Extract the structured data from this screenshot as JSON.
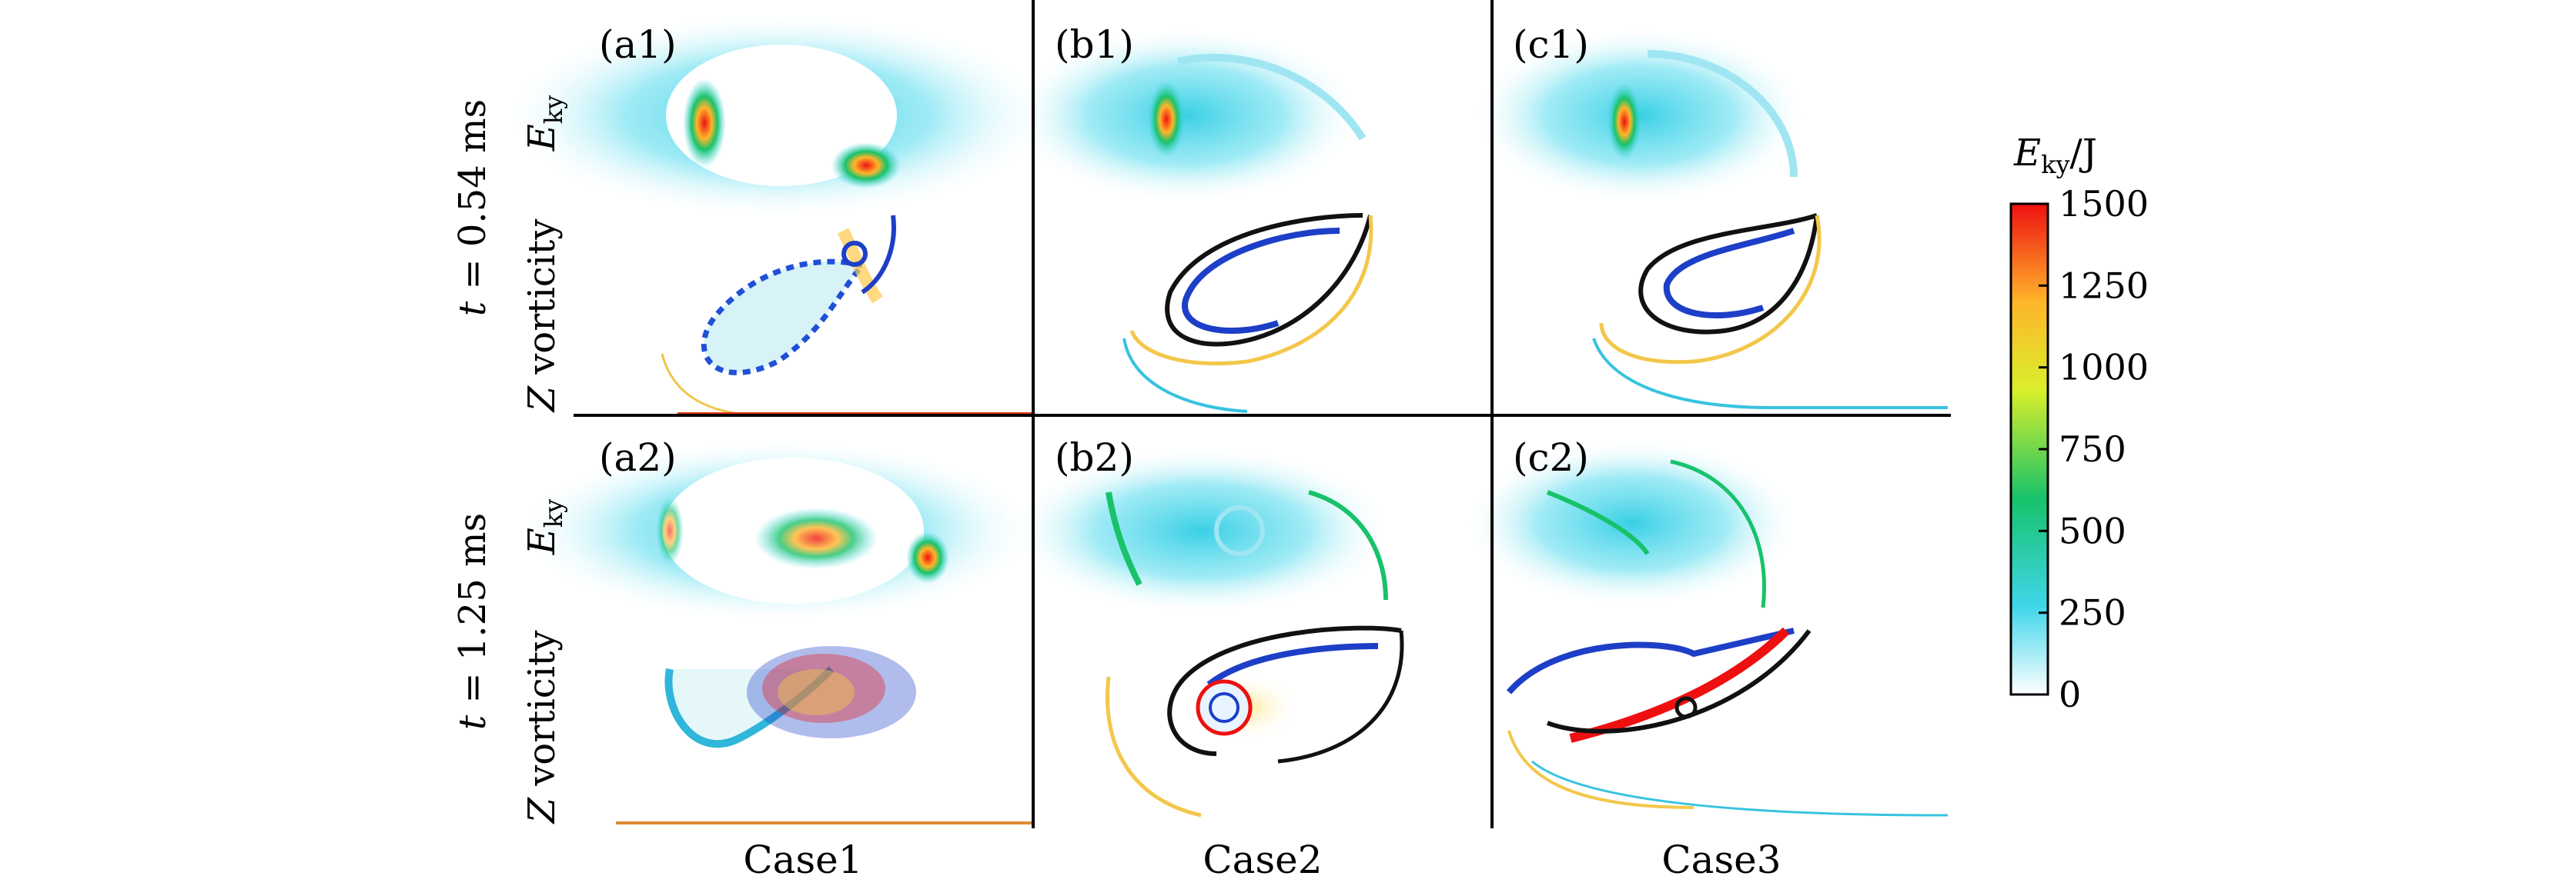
{
  "row_labels": [
    {
      "prefix": "t",
      "suffix": " = 0.54 ms"
    },
    {
      "prefix": "t",
      "suffix": " = 1.25 ms"
    }
  ],
  "subrow_labels": {
    "energy_main": "E",
    "energy_sub": "ky",
    "vorticity_main": "Z",
    "vorticity_rest": " vorticity"
  },
  "column_labels": [
    "Case1",
    "Case2",
    "Case3"
  ],
  "panel_tags": [
    [
      "(a1)",
      "(b1)",
      "(c1)"
    ],
    [
      "(a2)",
      "(b2)",
      "(c2)"
    ]
  ],
  "colorbar": {
    "title_main": "E",
    "title_sub": "ky",
    "title_unit": "/J",
    "ticks": [
      "1500",
      "1250",
      "1000",
      "750",
      "500",
      "250",
      "0"
    ],
    "colors": [
      "#ffffff",
      "#3fd6ea",
      "#18c26a",
      "#d9ef2a",
      "#ffb52a",
      "#ee1010"
    ]
  }
}
